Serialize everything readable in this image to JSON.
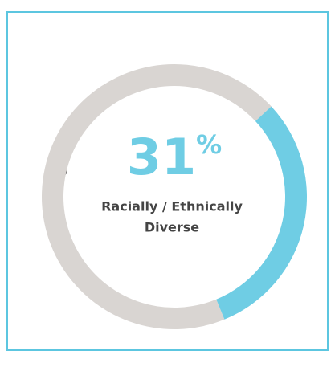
{
  "chart_data": {
    "type": "donut",
    "values": [
      4,
      9
    ],
    "colors": [
      "#6fcde4",
      "#d9d5d2"
    ],
    "center_value": "31",
    "center_unit": "%",
    "center_label": [
      "Racially / Ethnically",
      "Diverse"
    ]
  }
}
